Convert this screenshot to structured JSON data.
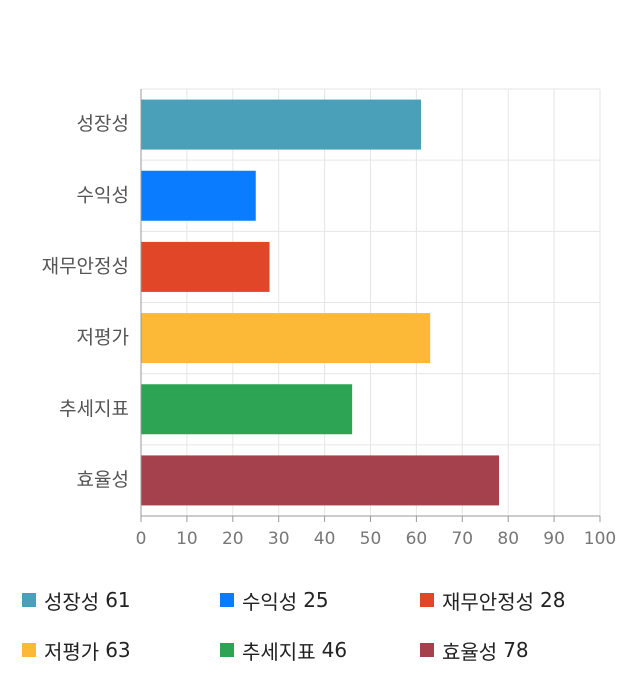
{
  "chart_data": {
    "type": "bar",
    "orientation": "horizontal",
    "categories": [
      "성장성",
      "수익성",
      "재무안정성",
      "저평가",
      "추세지표",
      "효율성"
    ],
    "values": [
      61,
      25,
      28,
      63,
      46,
      78
    ],
    "colors": [
      "#4aa0b8",
      "#0a7cff",
      "#e24628",
      "#fbb937",
      "#2ca453",
      "#a5404d"
    ],
    "xlim": [
      0,
      100
    ],
    "xticks": [
      0,
      10,
      20,
      30,
      40,
      50,
      60,
      70,
      80,
      90,
      100
    ],
    "grid": true,
    "legend_placement": "bottom",
    "title": "",
    "xlabel": "",
    "ylabel": ""
  },
  "legend": [
    {
      "label": "성장성",
      "value": "61"
    },
    {
      "label": "수익성",
      "value": "25"
    },
    {
      "label": "재무안정성",
      "value": "28"
    },
    {
      "label": "저평가",
      "value": "63"
    },
    {
      "label": "추세지표",
      "value": "46"
    },
    {
      "label": "효율성",
      "value": "78"
    }
  ]
}
